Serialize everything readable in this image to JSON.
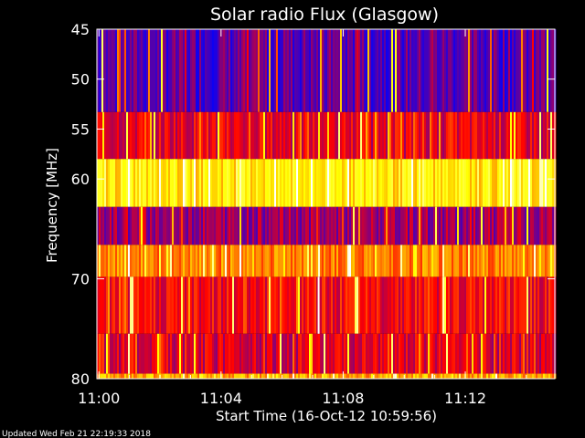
{
  "chart_data": {
    "type": "heatmap",
    "title": "Solar radio Flux (Glasgow)",
    "xlabel": "Start Time (16-Oct-12 10:59:56)",
    "ylabel": "Frequency [MHz]",
    "x_range": [
      "10:59:56",
      "11:14:56"
    ],
    "y_range": [
      45,
      80
    ],
    "y_reversed": true,
    "x_ticks": [
      "11:00",
      "11:04",
      "11:08",
      "11:12"
    ],
    "y_ticks": [
      45,
      50,
      55,
      60,
      70,
      80
    ],
    "colormap": [
      "#0000ff",
      "#ff0000",
      "#ffff00",
      "#ffffff"
    ],
    "frequency_bands": [
      {
        "from": 45,
        "to": 53.3,
        "level": 0.12
      },
      {
        "from": 53.3,
        "to": 58,
        "level": 0.3
      },
      {
        "from": 58,
        "to": 62.8,
        "level": 0.65
      },
      {
        "from": 62.8,
        "to": 66.6,
        "level": 0.2
      },
      {
        "from": 66.6,
        "to": 69.8,
        "level": 0.5
      },
      {
        "from": 69.8,
        "to": 75.5,
        "level": 0.33
      },
      {
        "from": 75.5,
        "to": 79.5,
        "level": 0.28
      },
      {
        "from": 79.5,
        "to": 80,
        "level": 0.55
      }
    ],
    "highlights": [
      {
        "time": "11:00:05",
        "from": 45,
        "to": 53.3,
        "level": 0.8
      },
      {
        "time": "11:07:10",
        "from": 69.8,
        "to": 75.5,
        "level": 1.0
      }
    ]
  },
  "footer": {
    "updated": "Updated Wed Feb 21 22:19:33 2018"
  }
}
